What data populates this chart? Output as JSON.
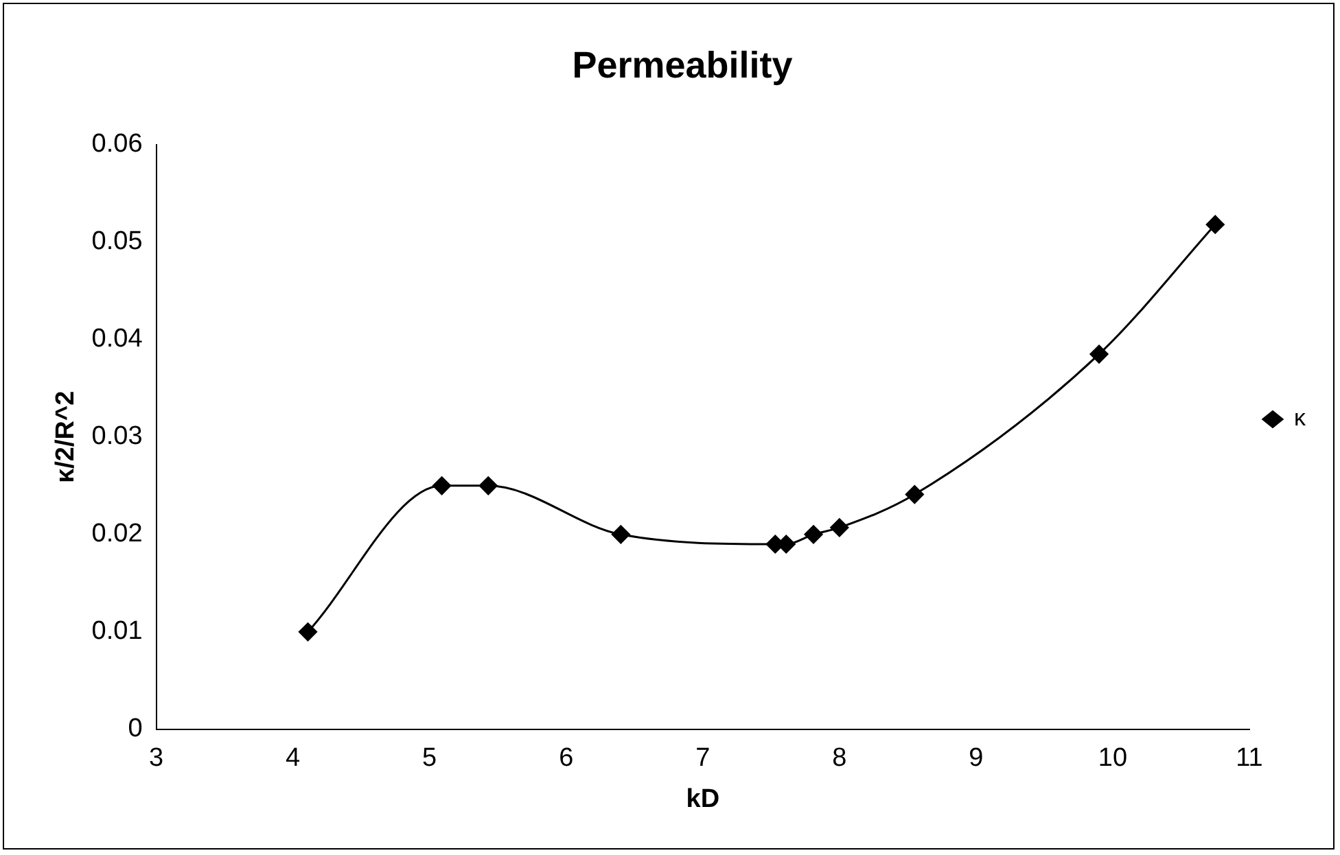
{
  "chart_data": {
    "type": "line",
    "title": "Permeability",
    "xlabel": "kD",
    "ylabel": "κ/2/R^2",
    "xlim": [
      3,
      11
    ],
    "xticks": [
      3,
      4,
      5,
      6,
      7,
      8,
      9,
      10,
      11
    ],
    "ylim": [
      0,
      0.06
    ],
    "yticks": [
      0,
      0.01,
      0.02,
      0.03,
      0.04,
      0.05,
      0.06
    ],
    "grid": false,
    "legend": "right",
    "marker": "diamond",
    "line_style": "solid",
    "series": [
      {
        "name": "κ",
        "color": "#000000",
        "x": [
          4.11,
          5.09,
          5.43,
          6.4,
          7.53,
          7.61,
          7.81,
          8.0,
          8.55,
          9.9,
          10.75
        ],
        "values": [
          0.01,
          0.025,
          0.025,
          0.02,
          0.019,
          0.019,
          0.02,
          0.0207,
          0.0241,
          0.0385,
          0.0518
        ]
      }
    ]
  }
}
